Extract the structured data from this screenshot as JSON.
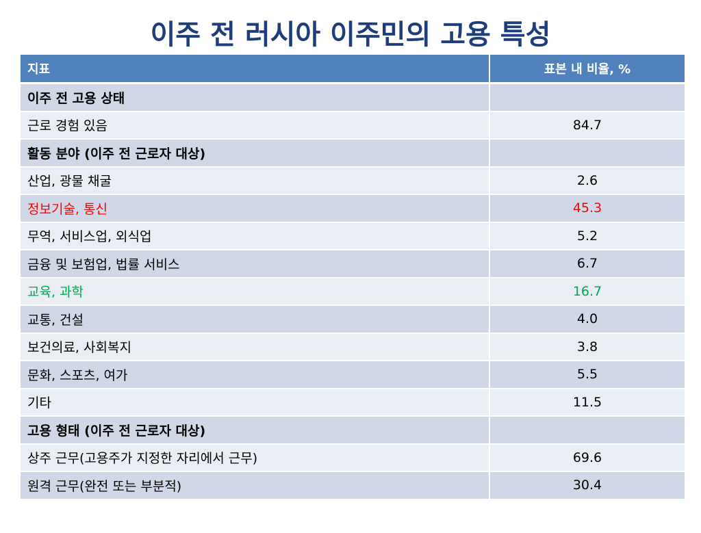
{
  "title": "이주 전 러시아 이주민의 고용 특성",
  "table": {
    "headers": {
      "indicator": "지표",
      "share": "표본 내 비율, %"
    },
    "rows": [
      {
        "label": "이주 전 고용 상태",
        "value": "",
        "type": "section"
      },
      {
        "label": "근로 경험 있음",
        "value": "84.7",
        "type": "item"
      },
      {
        "label": "활동 분야 (이주 전 근로자 대상)",
        "value": "",
        "type": "section"
      },
      {
        "label": "산업, 광물 채굴",
        "value": "2.6",
        "type": "item"
      },
      {
        "label": "정보기술, 통신",
        "value": "45.3",
        "type": "item",
        "highlight": "red"
      },
      {
        "label": "무역, 서비스업, 외식업",
        "value": "5.2",
        "type": "item"
      },
      {
        "label": "금융 및 보험업, 법률 서비스",
        "value": "6.7",
        "type": "item"
      },
      {
        "label": "교육, 과학",
        "value": "16.7",
        "type": "item",
        "highlight": "green"
      },
      {
        "label": "교통, 건설",
        "value": "4.0",
        "type": "item"
      },
      {
        "label": "보건의료, 사회복지",
        "value": "3.8",
        "type": "item"
      },
      {
        "label": "문화, 스포츠, 여가",
        "value": "5.5",
        "type": "item"
      },
      {
        "label": "기타",
        "value": "11.5",
        "type": "item"
      },
      {
        "label": "고용 형태 (이주 전 근로자 대상)",
        "value": "",
        "type": "section"
      },
      {
        "label": "상주 근무(고용주가 지정한 자리에서 근무)",
        "value": "69.6",
        "type": "item"
      },
      {
        "label": "원격 근무(완전 또는 부분적)",
        "value": "30.4",
        "type": "item"
      }
    ]
  },
  "colors": {
    "title": "#1f3d7a",
    "header_bg": "#4f81bd",
    "row_odd": "#d0d8e8",
    "row_even": "#e9edf4",
    "highlight_red": "#ff0000",
    "highlight_green": "#00a650"
  }
}
